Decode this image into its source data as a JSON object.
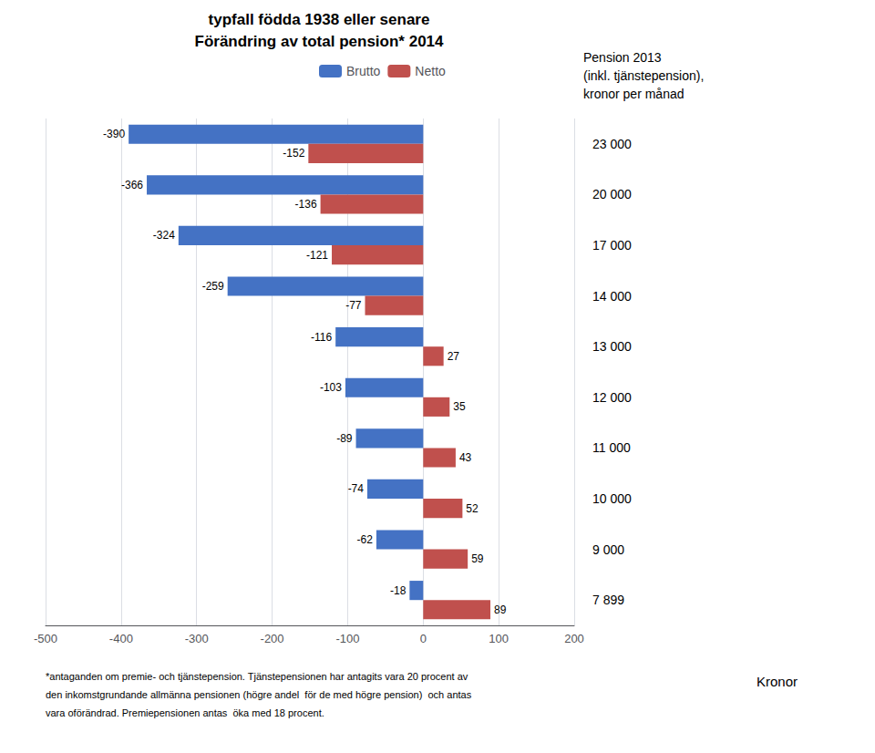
{
  "chart_data": {
    "type": "bar",
    "orientation": "horizontal",
    "subtitle": "typfall födda 1938 eller senare",
    "title": "Förändring av total pension* 2014",
    "ylabel": [
      "Pension 2013",
      "(inkl. tjänstepension),",
      "kronor per månad"
    ],
    "xlabel": "Kronor",
    "annotations": [
      "*antaganden om premie- och tjänstepension. Tjänstepensionen har antagits vara 20 procent av",
      "den inkomstgrundande allmänna pensionen (högre andel  för de med högre pension)  och antas",
      "vara oförändrad. Premiepensionen antas  öka med 18 procent."
    ],
    "categories": [
      "23 000",
      "20 000",
      "17 000",
      "14 000",
      "13 000",
      "12 000",
      "11 000",
      "10 000",
      "9 000",
      "7 899"
    ],
    "series": [
      {
        "name": "Brutto",
        "color": "#4472C4",
        "values": [
          -390,
          -366,
          -324,
          -259,
          -116,
          -103,
          -89,
          -74,
          -62,
          -18
        ]
      },
      {
        "name": "Netto",
        "color": "#C0504D",
        "values": [
          -152,
          -136,
          -121,
          -77,
          27,
          35,
          43,
          52,
          59,
          89
        ]
      }
    ],
    "xlim": [
      -500,
      200
    ],
    "xticks": [
      -500,
      -400,
      -300,
      -200,
      -100,
      0,
      100,
      200
    ],
    "grid": true,
    "legend": "top",
    "data_labels": true
  }
}
